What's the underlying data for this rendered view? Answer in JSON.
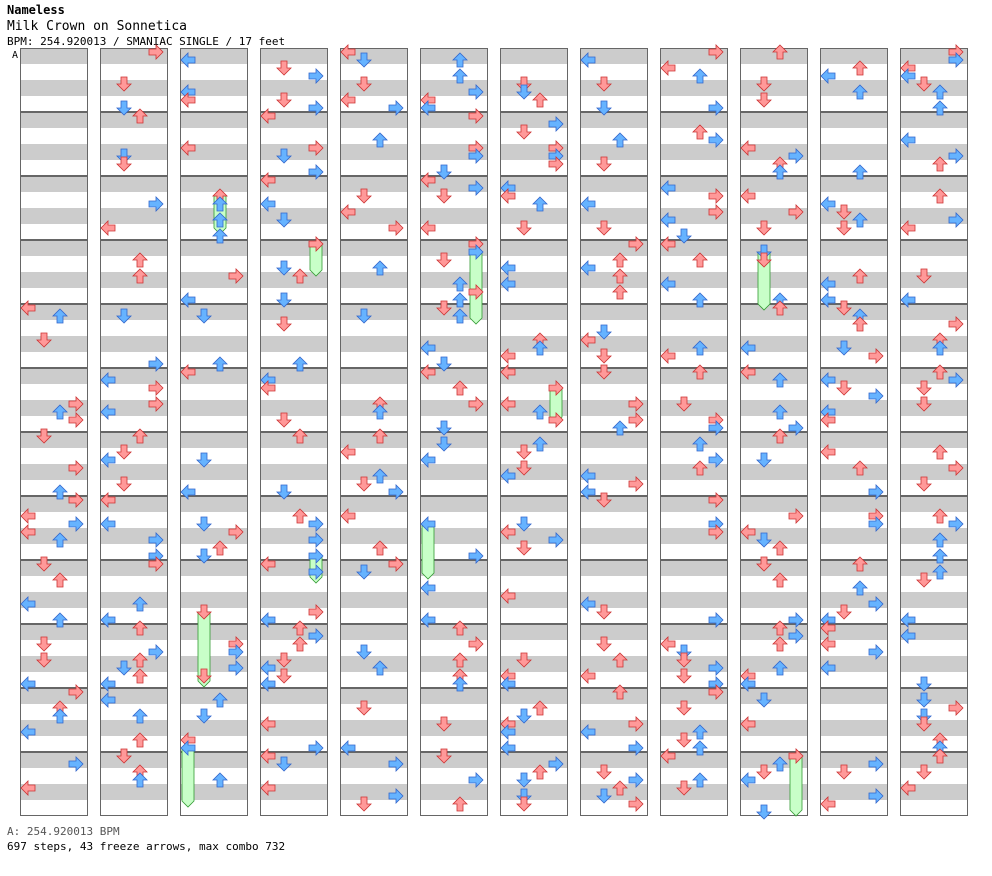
{
  "header": {
    "author": "Nameless",
    "song_title": "Milk Crown on Sonnetica",
    "meta": "BPM: 254.920013 / SMANIAC SINGLE / 17 feet"
  },
  "marker": {
    "label": "A"
  },
  "footer": {
    "bpm_line": "A: 254.920013 BPM",
    "stats_line": "697 steps, 43 freeze arrows, max combo 732"
  },
  "colors": {
    "red_arrow": "#ff9999",
    "blue_arrow": "#66b3ff",
    "freeze": "#c8ffc8",
    "stripe": "#cccccc",
    "border": "#666666"
  },
  "chart": {
    "columns": 12,
    "measures_per_column": 12,
    "notes_per_measure": 4,
    "lanes": [
      "left",
      "down",
      "up",
      "right"
    ]
  }
}
